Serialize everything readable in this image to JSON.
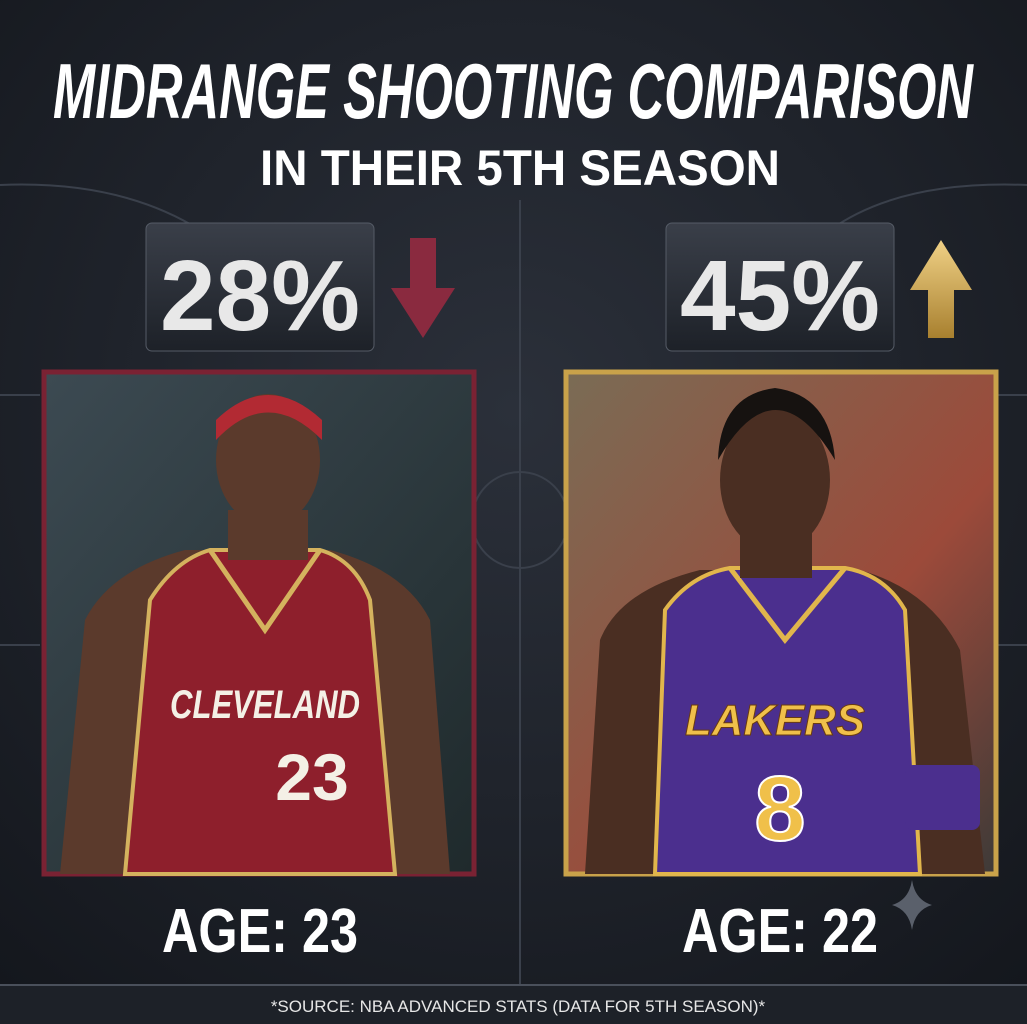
{
  "header": {
    "title": "MIDRANGE SHOOTING COMPARISON",
    "subtitle": "IN THEIR 5TH SEASON"
  },
  "players": [
    {
      "stat": "28%",
      "age": "AGE: 23",
      "jersey_team": "CLEVELAND",
      "jersey_number": "23"
    },
    {
      "stat": "45%",
      "age": "AGE: 22",
      "jersey_team": "LAKERS",
      "jersey_number": "8"
    }
  ],
  "footer": {
    "source": "*SOURCE: NBA ADVANCED STATS (DATA FOR 5TH SEASON)*"
  }
}
